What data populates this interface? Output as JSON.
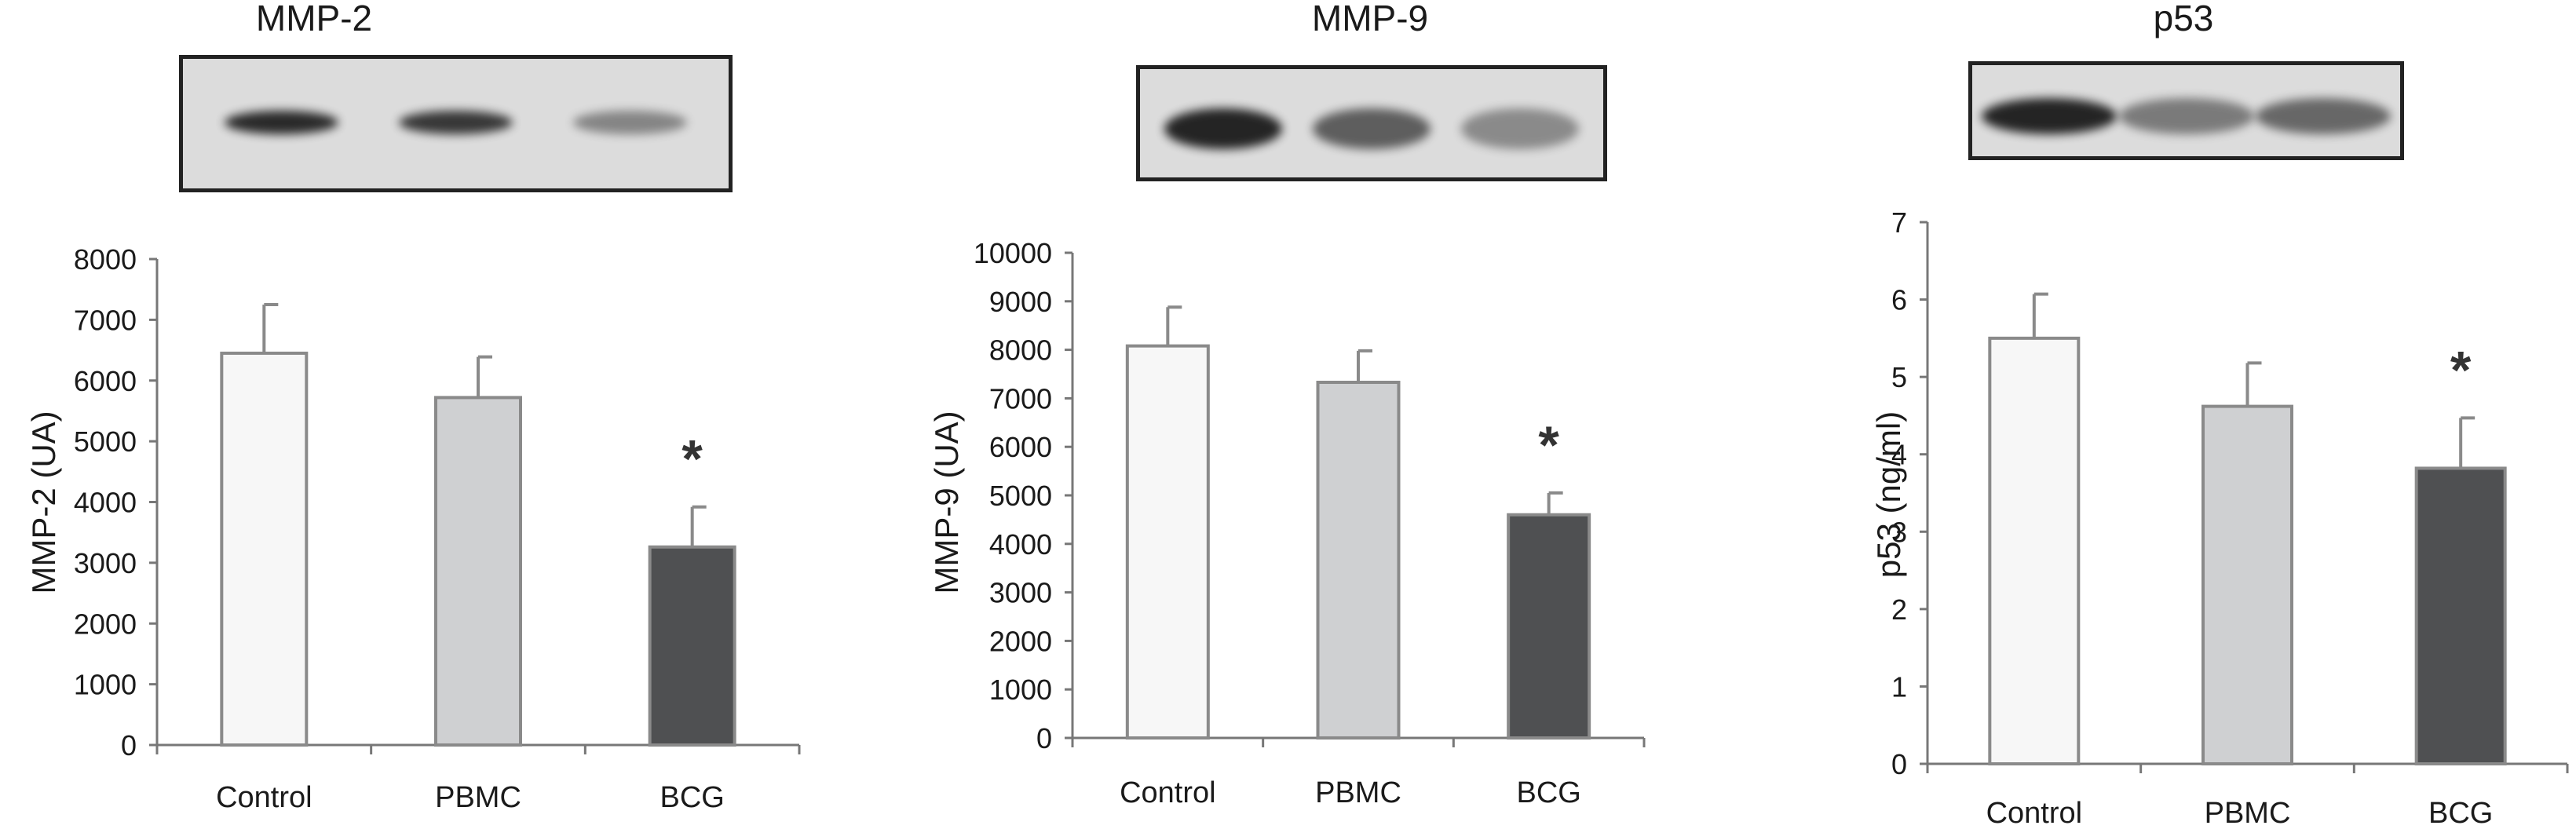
{
  "figure": {
    "panels": [
      {
        "title": "MMP-2",
        "blot_name": "mmp2-western-blot",
        "band_intensity": [
          0.92,
          0.85,
          0.45
        ]
      },
      {
        "title": "MMP-9",
        "blot_name": "mmp9-western-blot",
        "band_intensity": [
          0.95,
          0.65,
          0.42
        ]
      },
      {
        "title": "p53",
        "blot_name": "p53-western-blot",
        "band_intensity": [
          0.95,
          0.5,
          0.6
        ]
      }
    ],
    "significance_marker": "*"
  },
  "colors": {
    "control_bar": "#f7f7f7",
    "pbmc_bar": "#cfd0d2",
    "bcg_bar": "#4f5052",
    "bar_outline": "#8a8a8a",
    "axis": "#777777",
    "blot_background": "#dcdcdc",
    "band": "#1b1b1b"
  },
  "chart_data": [
    {
      "type": "bar",
      "title": "MMP-2",
      "ylabel": "MMP-2 (UA)",
      "xlabel": "",
      "categories": [
        "Control",
        "PBMC",
        "BCG"
      ],
      "values": [
        6450,
        5720,
        3260
      ],
      "errors": [
        800,
        670,
        660
      ],
      "significant": [
        false,
        false,
        true
      ],
      "ylim": [
        0,
        8000
      ],
      "yticks": [
        0,
        1000,
        2000,
        3000,
        4000,
        5000,
        6000,
        7000,
        8000
      ],
      "grid": false,
      "legend": "none"
    },
    {
      "type": "bar",
      "title": "MMP-9",
      "ylabel": "MMP-9 (UA)",
      "xlabel": "",
      "categories": [
        "Control",
        "PBMC",
        "BCG"
      ],
      "values": [
        8080,
        7330,
        4600
      ],
      "errors": [
        800,
        650,
        450
      ],
      "significant": [
        false,
        false,
        true
      ],
      "ylim": [
        0,
        10000
      ],
      "yticks": [
        0,
        1000,
        2000,
        3000,
        4000,
        5000,
        6000,
        7000,
        8000,
        9000,
        10000
      ],
      "grid": false,
      "legend": "none"
    },
    {
      "type": "bar",
      "title": "p53",
      "ylabel": "p53 (ng/ml)",
      "xlabel": "",
      "categories": [
        "Control",
        "PBMC",
        "BCG"
      ],
      "values": [
        5.5,
        4.62,
        3.82
      ],
      "errors": [
        0.57,
        0.56,
        0.65
      ],
      "significant": [
        false,
        false,
        true
      ],
      "ylim": [
        0,
        7
      ],
      "yticks": [
        0,
        1,
        2,
        3,
        4,
        5,
        6,
        7
      ],
      "grid": false,
      "legend": "none"
    }
  ]
}
